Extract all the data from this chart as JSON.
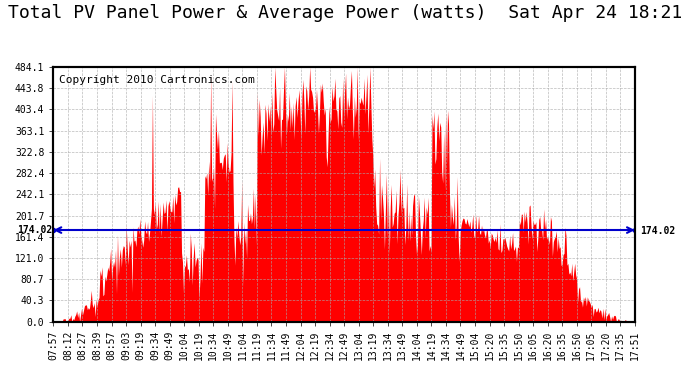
{
  "title": "Total PV Panel Power & Average Power (watts)  Sat Apr 24 18:21",
  "copyright": "Copyright 2010 Cartronics.com",
  "avg_power": 174.02,
  "y_max": 484.1,
  "y_min": 0.0,
  "yticks": [
    0.0,
    40.3,
    80.7,
    121.0,
    161.4,
    201.7,
    242.1,
    282.4,
    322.8,
    363.1,
    403.4,
    443.8,
    484.1
  ],
  "fill_color": "#FF0000",
  "line_color": "#0000CC",
  "bg_color": "#FFFFFF",
  "plot_bg_color": "#FFFFFF",
  "grid_color": "#AAAAAA",
  "border_color": "#000000",
  "title_color": "#000000",
  "copyright_color": "#000000",
  "avg_label_color": "#000000",
  "xtick_labels": [
    "07:57",
    "08:12",
    "08:27",
    "08:39",
    "08:57",
    "09:03",
    "09:19",
    "09:34",
    "09:49",
    "10:04",
    "10:19",
    "10:34",
    "10:49",
    "11:04",
    "11:19",
    "11:34",
    "11:49",
    "12:04",
    "12:19",
    "12:34",
    "12:49",
    "13:04",
    "13:19",
    "13:34",
    "13:49",
    "14:04",
    "14:19",
    "14:34",
    "14:49",
    "15:04",
    "15:20",
    "15:35",
    "15:50",
    "16:05",
    "16:20",
    "16:35",
    "16:50",
    "17:05",
    "17:20",
    "17:35",
    "17:51"
  ],
  "title_fontsize": 13,
  "copyright_fontsize": 8,
  "tick_fontsize": 7,
  "avg_fontsize": 7
}
